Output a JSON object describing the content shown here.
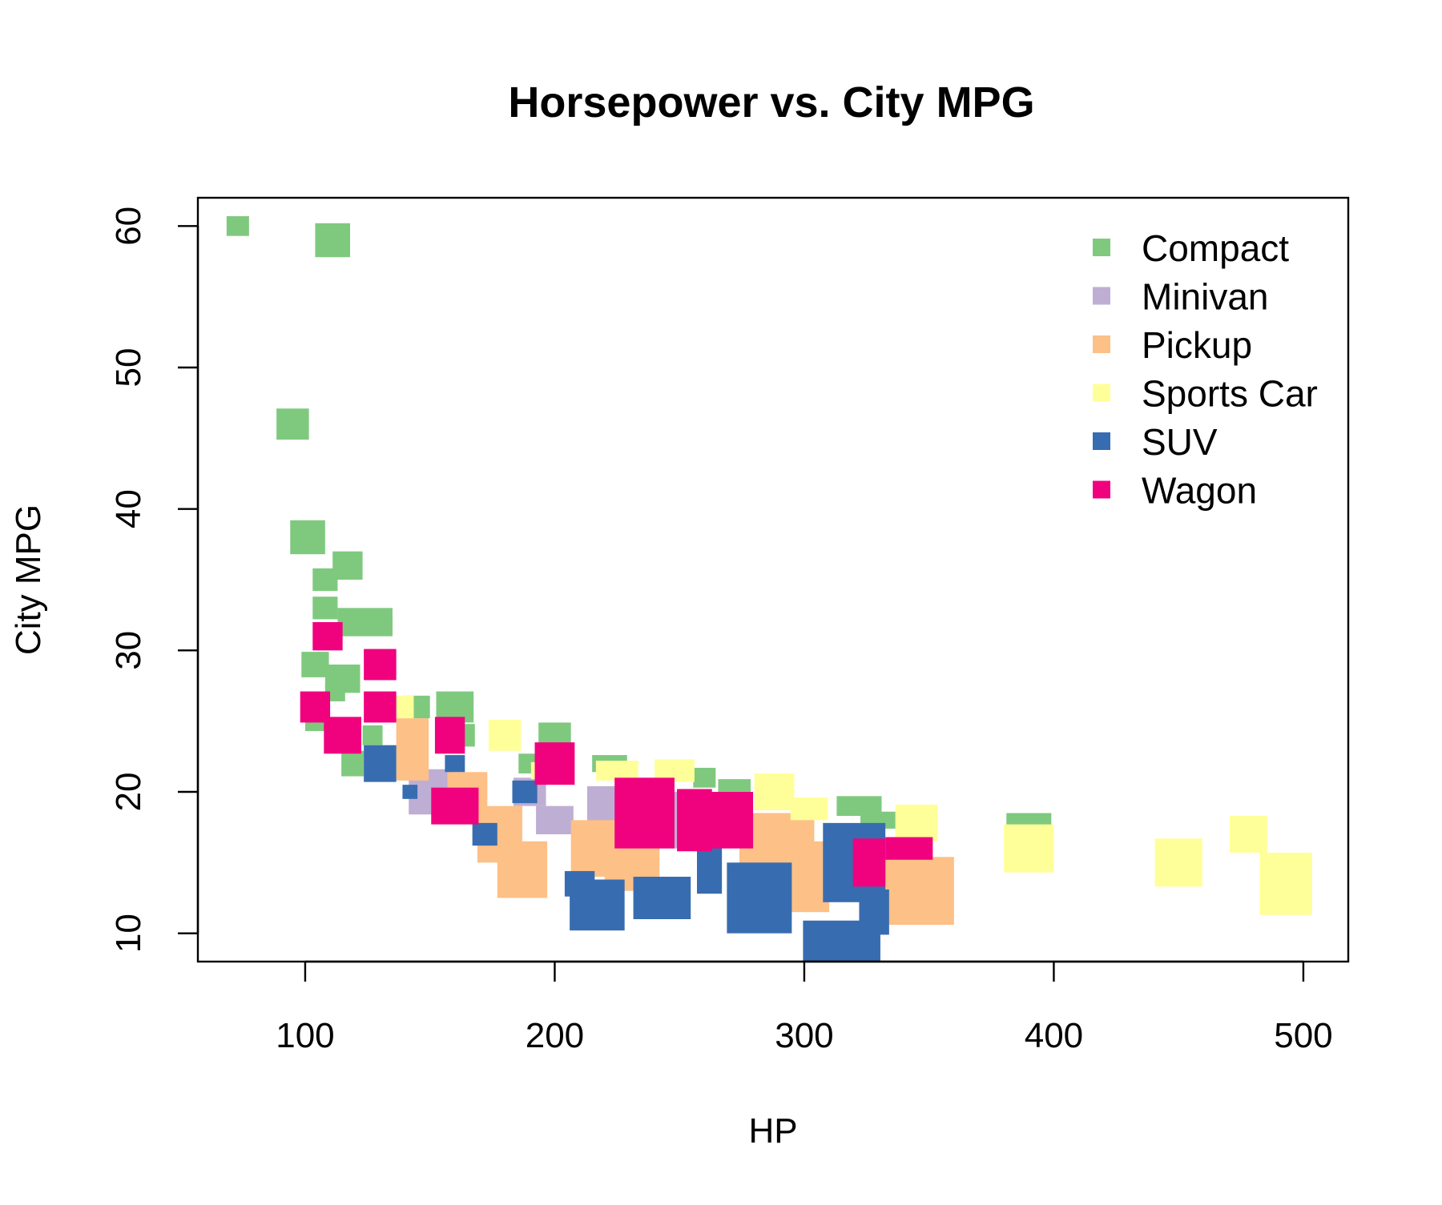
{
  "chart_data": {
    "type": "scatter",
    "title": "Horsepower vs. City MPG",
    "xlabel": "HP",
    "ylabel": "City MPG",
    "xlim": [
      57,
      518
    ],
    "ylim": [
      8,
      62
    ],
    "x_ticks": [
      100,
      200,
      300,
      400,
      500
    ],
    "y_ticks": [
      10,
      20,
      30,
      40,
      50,
      60
    ],
    "grid": false,
    "legend_position": "top-right",
    "note": "Marker size varies per point; size_hp/size_mpg give marker extents in data units.",
    "series": [
      {
        "name": "Compact",
        "color": "#7FC97F",
        "points": [
          {
            "x": 73,
            "y": 60,
            "size_hp": 9,
            "size_mpg": 1.4
          },
          {
            "x": 111,
            "y": 59,
            "size_hp": 14,
            "size_mpg": 2.4
          },
          {
            "x": 95,
            "y": 46,
            "size_hp": 13,
            "size_mpg": 2.2
          },
          {
            "x": 101,
            "y": 38,
            "size_hp": 14,
            "size_mpg": 2.4
          },
          {
            "x": 117,
            "y": 36,
            "size_hp": 12,
            "size_mpg": 2.0
          },
          {
            "x": 108,
            "y": 35,
            "size_hp": 10,
            "size_mpg": 1.6
          },
          {
            "x": 108,
            "y": 33,
            "size_hp": 10,
            "size_mpg": 1.6
          },
          {
            "x": 124,
            "y": 32,
            "size_hp": 22,
            "size_mpg": 2.0
          },
          {
            "x": 104,
            "y": 29,
            "size_hp": 11,
            "size_mpg": 1.8
          },
          {
            "x": 115,
            "y": 28,
            "size_hp": 14,
            "size_mpg": 2.0
          },
          {
            "x": 130,
            "y": 29,
            "size_hp": 11,
            "size_mpg": 2.2
          },
          {
            "x": 104,
            "y": 25,
            "size_hp": 8,
            "size_mpg": 1.4
          },
          {
            "x": 112,
            "y": 27,
            "size_hp": 8,
            "size_mpg": 1.2
          },
          {
            "x": 145,
            "y": 26,
            "size_hp": 10,
            "size_mpg": 1.6
          },
          {
            "x": 160,
            "y": 26,
            "size_hp": 15,
            "size_mpg": 2.2
          },
          {
            "x": 163,
            "y": 24,
            "size_hp": 10,
            "size_mpg": 1.6
          },
          {
            "x": 200,
            "y": 24,
            "size_hp": 13,
            "size_mpg": 1.8
          },
          {
            "x": 119,
            "y": 22,
            "size_hp": 9,
            "size_mpg": 1.8
          },
          {
            "x": 127,
            "y": 24,
            "size_hp": 8,
            "size_mpg": 1.4
          },
          {
            "x": 190,
            "y": 22,
            "size_hp": 9,
            "size_mpg": 1.4
          },
          {
            "x": 222,
            "y": 22,
            "size_hp": 14,
            "size_mpg": 1.2
          },
          {
            "x": 260,
            "y": 21,
            "size_hp": 9,
            "size_mpg": 1.4
          },
          {
            "x": 272,
            "y": 20,
            "size_hp": 13,
            "size_mpg": 1.8
          },
          {
            "x": 322,
            "y": 19,
            "size_hp": 18,
            "size_mpg": 1.4
          },
          {
            "x": 330,
            "y": 18,
            "size_hp": 15,
            "size_mpg": 1.2
          },
          {
            "x": 390,
            "y": 18,
            "size_hp": 18,
            "size_mpg": 1.0
          }
        ]
      },
      {
        "name": "Minivan",
        "color": "#BEAED4",
        "points": [
          {
            "x": 150,
            "y": 20,
            "size_hp": 17,
            "size_mpg": 3.2
          },
          {
            "x": 190,
            "y": 20,
            "size_hp": 13,
            "size_mpg": 2.0
          },
          {
            "x": 200,
            "y": 18,
            "size_hp": 15,
            "size_mpg": 2.0
          },
          {
            "x": 225,
            "y": 19,
            "size_hp": 24,
            "size_mpg": 2.8
          },
          {
            "x": 240,
            "y": 18,
            "size_hp": 22,
            "size_mpg": 4.0
          }
        ]
      },
      {
        "name": "Pickup",
        "color": "#FDC086",
        "points": [
          {
            "x": 143,
            "y": 23,
            "size_hp": 13,
            "size_mpg": 4.4
          },
          {
            "x": 165,
            "y": 20,
            "size_hp": 16,
            "size_mpg": 2.8
          },
          {
            "x": 178,
            "y": 17,
            "size_hp": 18,
            "size_mpg": 4.0
          },
          {
            "x": 187,
            "y": 14.5,
            "size_hp": 20,
            "size_mpg": 4.0
          },
          {
            "x": 218,
            "y": 16,
            "size_hp": 23,
            "size_mpg": 4.0
          },
          {
            "x": 231,
            "y": 15,
            "size_hp": 22,
            "size_mpg": 4.0
          },
          {
            "x": 289,
            "y": 16.5,
            "size_hp": 30,
            "size_mpg": 4.0
          },
          {
            "x": 295,
            "y": 14,
            "size_hp": 30,
            "size_mpg": 5.0
          },
          {
            "x": 346,
            "y": 13,
            "size_hp": 28,
            "size_mpg": 4.8
          }
        ]
      },
      {
        "name": "Sports Car",
        "color": "#FFFF99",
        "points": [
          {
            "x": 140,
            "y": 26,
            "size_hp": 7,
            "size_mpg": 1.6
          },
          {
            "x": 180,
            "y": 24,
            "size_hp": 13,
            "size_mpg": 2.2
          },
          {
            "x": 194,
            "y": 21.5,
            "size_hp": 7,
            "size_mpg": 1.2
          },
          {
            "x": 225,
            "y": 21.5,
            "size_hp": 17,
            "size_mpg": 1.4
          },
          {
            "x": 248,
            "y": 21.5,
            "size_hp": 16,
            "size_mpg": 1.6
          },
          {
            "x": 288,
            "y": 20,
            "size_hp": 16,
            "size_mpg": 2.6
          },
          {
            "x": 302,
            "y": 18.8,
            "size_hp": 15,
            "size_mpg": 1.6
          },
          {
            "x": 345,
            "y": 17.8,
            "size_hp": 17,
            "size_mpg": 2.6
          },
          {
            "x": 390,
            "y": 16,
            "size_hp": 20,
            "size_mpg": 3.4
          },
          {
            "x": 450,
            "y": 15,
            "size_hp": 19,
            "size_mpg": 3.4
          },
          {
            "x": 478,
            "y": 17,
            "size_hp": 15,
            "size_mpg": 2.6
          },
          {
            "x": 493,
            "y": 13.5,
            "size_hp": 21,
            "size_mpg": 4.4
          }
        ]
      },
      {
        "name": "SUV",
        "color": "#386CB0",
        "points": [
          {
            "x": 130,
            "y": 22,
            "size_hp": 13,
            "size_mpg": 2.6
          },
          {
            "x": 142,
            "y": 20,
            "size_hp": 6,
            "size_mpg": 1.0
          },
          {
            "x": 160,
            "y": 22,
            "size_hp": 8,
            "size_mpg": 1.2
          },
          {
            "x": 172,
            "y": 17,
            "size_hp": 10,
            "size_mpg": 1.6
          },
          {
            "x": 188,
            "y": 20,
            "size_hp": 10,
            "size_mpg": 1.6
          },
          {
            "x": 210,
            "y": 13.5,
            "size_hp": 12,
            "size_mpg": 1.8
          },
          {
            "x": 217,
            "y": 12,
            "size_hp": 22,
            "size_mpg": 3.6
          },
          {
            "x": 243,
            "y": 12.5,
            "size_hp": 23,
            "size_mpg": 3.0
          },
          {
            "x": 262,
            "y": 14.5,
            "size_hp": 10,
            "size_mpg": 3.4
          },
          {
            "x": 282,
            "y": 12.5,
            "size_hp": 26,
            "size_mpg": 5.0
          },
          {
            "x": 315,
            "y": 8.7,
            "size_hp": 31,
            "size_mpg": 4.4
          },
          {
            "x": 320,
            "y": 15,
            "size_hp": 25,
            "size_mpg": 5.6
          },
          {
            "x": 328,
            "y": 11.5,
            "size_hp": 12,
            "size_mpg": 3.2
          }
        ]
      },
      {
        "name": "Wagon",
        "color": "#F0027F",
        "points": [
          {
            "x": 109,
            "y": 31,
            "size_hp": 12,
            "size_mpg": 2.0
          },
          {
            "x": 104,
            "y": 26,
            "size_hp": 12,
            "size_mpg": 2.2
          },
          {
            "x": 130,
            "y": 29,
            "size_hp": 13,
            "size_mpg": 2.2
          },
          {
            "x": 130,
            "y": 26,
            "size_hp": 13,
            "size_mpg": 2.2
          },
          {
            "x": 115,
            "y": 24,
            "size_hp": 15,
            "size_mpg": 2.6
          },
          {
            "x": 158,
            "y": 24,
            "size_hp": 12,
            "size_mpg": 2.6
          },
          {
            "x": 160,
            "y": 19,
            "size_hp": 19,
            "size_mpg": 2.6
          },
          {
            "x": 200,
            "y": 22,
            "size_hp": 16,
            "size_mpg": 3.0
          },
          {
            "x": 236,
            "y": 18.5,
            "size_hp": 24,
            "size_mpg": 5.0
          },
          {
            "x": 256,
            "y": 18,
            "size_hp": 14,
            "size_mpg": 4.4
          },
          {
            "x": 266,
            "y": 18,
            "size_hp": 27,
            "size_mpg": 4.0
          },
          {
            "x": 326,
            "y": 15,
            "size_hp": 13,
            "size_mpg": 3.4
          },
          {
            "x": 342,
            "y": 16,
            "size_hp": 19,
            "size_mpg": 1.6
          }
        ]
      }
    ]
  }
}
